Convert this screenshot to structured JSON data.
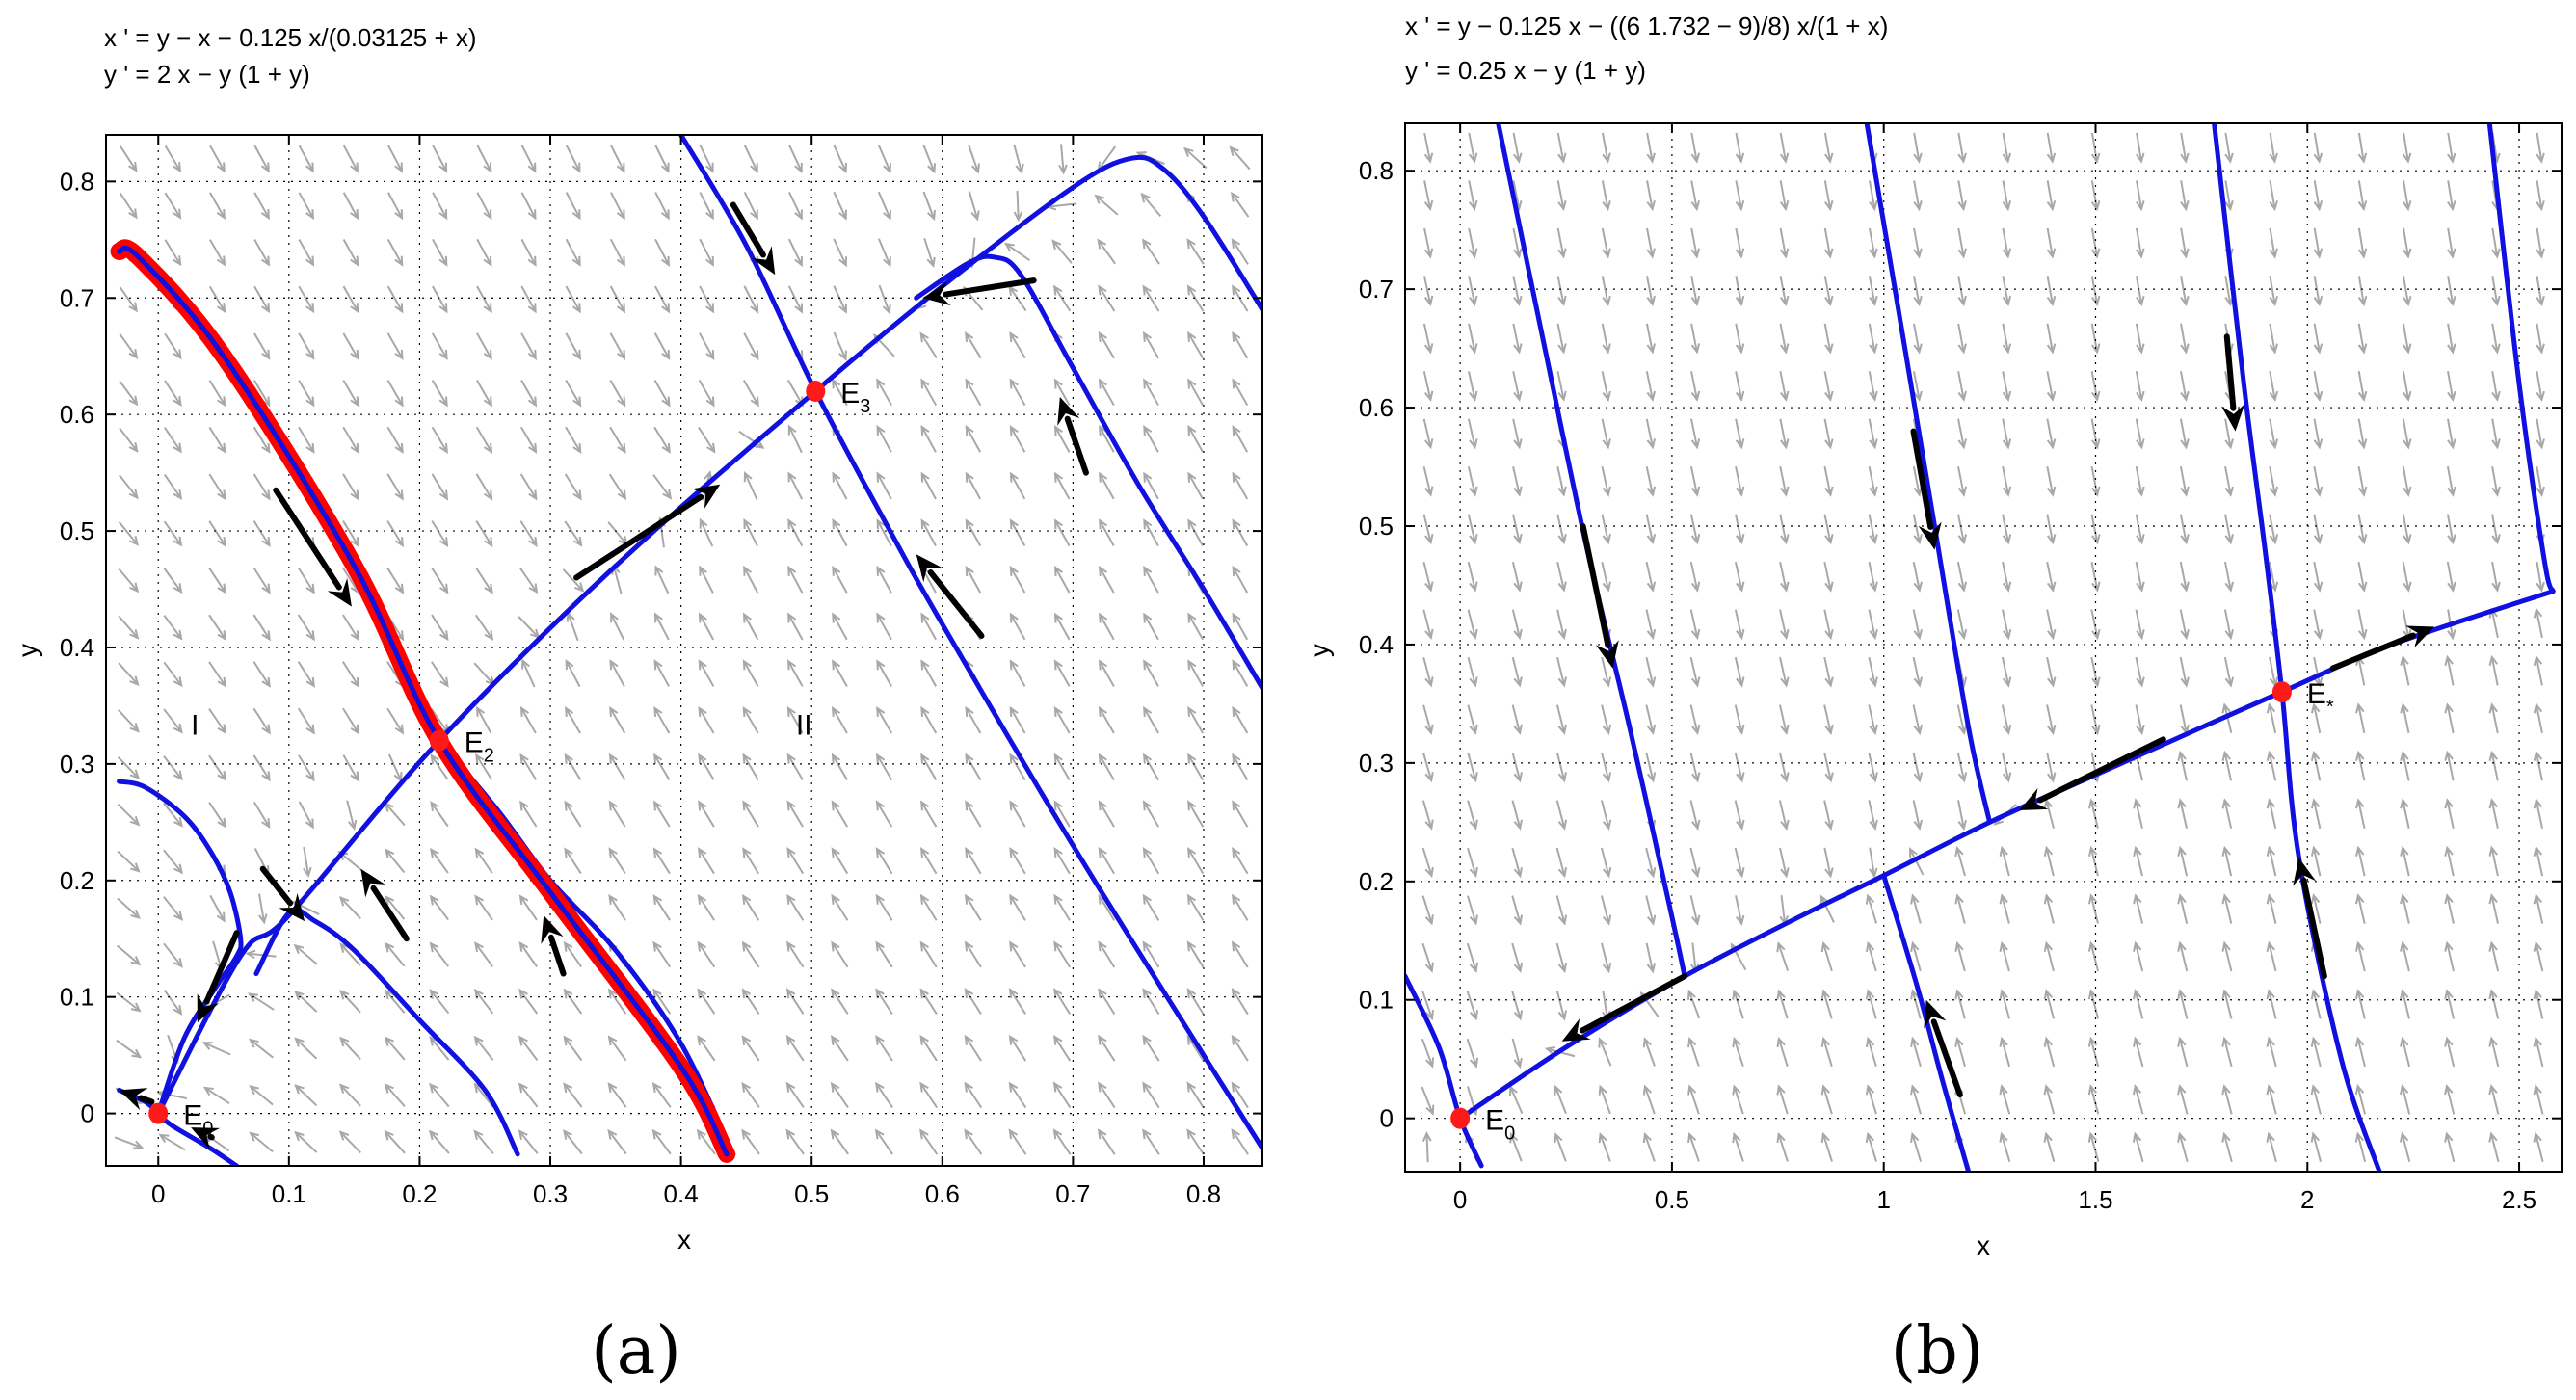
{
  "chart_data": [
    {
      "type": "line",
      "panel_label": "(a)",
      "equations": [
        "x ' = y − x − 0.125 x/(0.03125 + x)",
        "y ' = 2 x − y (1 + y)"
      ],
      "xlabel": "x",
      "ylabel": "y",
      "xlim": [
        -0.04,
        0.845
      ],
      "ylim": [
        -0.045,
        0.84
      ],
      "xticks": [
        0,
        0.1,
        0.2,
        0.3,
        0.4,
        0.5,
        0.6,
        0.7,
        0.8
      ],
      "xtick_labels": [
        "0",
        "0.1",
        "0.2",
        "0.3",
        "0.4",
        "0.5",
        "0.6",
        "0.7",
        "0.8"
      ],
      "yticks": [
        0,
        0.1,
        0.2,
        0.3,
        0.4,
        0.5,
        0.6,
        0.7,
        0.8
      ],
      "ytick_labels": [
        "0",
        "0.1",
        "0.2",
        "0.3",
        "0.4",
        "0.5",
        "0.6",
        "0.7",
        "0.8"
      ],
      "grid": true,
      "colors": {
        "trajectory": "#1010e0",
        "separatrix": "#ff0000",
        "field": "#a8a8a8",
        "arrow": "#000000",
        "equilibrium": "#ff1a1a"
      },
      "equilibria": [
        {
          "label": "E",
          "sub": "0",
          "x": 0,
          "y": 0
        },
        {
          "label": "E",
          "sub": "2",
          "x": 0.215,
          "y": 0.32
        },
        {
          "label": "E",
          "sub": "3",
          "x": 0.503,
          "y": 0.62
        }
      ],
      "region_labels": [
        {
          "text": "I",
          "x": 0.025,
          "y": 0.325
        },
        {
          "text": "II",
          "x": 0.488,
          "y": 0.325
        }
      ],
      "separatrix": [
        [
          -0.03,
          0.74
        ],
        [
          -0.015,
          0.735
        ],
        [
          0.05,
          0.65
        ],
        [
          0.15,
          0.47
        ],
        [
          0.215,
          0.32
        ],
        [
          0.3,
          0.19
        ],
        [
          0.4,
          0.04
        ],
        [
          0.435,
          -0.035
        ]
      ],
      "trajectories": [
        [
          [
            -0.03,
            0.285
          ],
          [
            -0.01,
            0.28
          ],
          [
            0.02,
            0.255
          ],
          [
            0.04,
            0.225
          ],
          [
            0.055,
            0.19
          ],
          [
            0.063,
            0.15
          ],
          [
            0.06,
            0.135
          ],
          [
            0.045,
            0.11
          ],
          [
            0.02,
            0.065
          ],
          [
            0.0,
            0.0
          ]
        ],
        [
          [
            0.0,
            0.0
          ],
          [
            0.063,
            0.135
          ],
          [
            0.1,
            0.17
          ],
          [
            0.215,
            0.32
          ],
          [
            0.35,
            0.47
          ],
          [
            0.503,
            0.62
          ],
          [
            0.6,
            0.71
          ],
          [
            0.7,
            0.795
          ],
          [
            0.745,
            0.82
          ],
          [
            0.77,
            0.81
          ],
          [
            0.8,
            0.77
          ],
          [
            0.845,
            0.69
          ]
        ],
        [
          [
            0.075,
            0.12
          ],
          [
            0.1,
            0.172
          ],
          [
            0.12,
            0.165
          ],
          [
            0.15,
            0.14
          ],
          [
            0.2,
            0.08
          ],
          [
            0.25,
            0.02
          ],
          [
            0.275,
            -0.035
          ]
        ],
        [
          [
            0.215,
            0.32
          ],
          [
            0.26,
            0.26
          ],
          [
            0.3,
            0.2
          ],
          [
            0.35,
            0.14
          ],
          [
            0.4,
            0.06
          ],
          [
            0.44,
            -0.035
          ]
        ],
        [
          [
            0.4,
            0.84
          ],
          [
            0.45,
            0.745
          ],
          [
            0.503,
            0.62
          ],
          [
            0.56,
            0.5
          ],
          [
            0.6,
            0.42
          ],
          [
            0.7,
            0.23
          ],
          [
            0.8,
            0.05
          ],
          [
            0.845,
            -0.03
          ]
        ],
        [
          [
            0.58,
            0.7
          ],
          [
            0.62,
            0.73
          ],
          [
            0.64,
            0.735
          ],
          [
            0.66,
            0.72
          ],
          [
            0.7,
            0.64
          ],
          [
            0.75,
            0.54
          ],
          [
            0.8,
            0.45
          ],
          [
            0.845,
            0.365
          ]
        ],
        [
          [
            -0.03,
            0.02
          ],
          [
            -0.01,
            0.01
          ],
          [
            0.0,
            0.0
          ],
          [
            0.01,
            -0.01
          ],
          [
            0.04,
            -0.03
          ],
          [
            0.06,
            -0.045
          ]
        ]
      ],
      "arrows": [
        {
          "from": [
            0.09,
            0.535
          ],
          "to": [
            0.148,
            0.435
          ]
        },
        {
          "from": [
            0.31,
            0.12
          ],
          "to": [
            0.295,
            0.17
          ]
        },
        {
          "from": [
            0.32,
            0.46
          ],
          "to": [
            0.43,
            0.54
          ]
        },
        {
          "from": [
            0.67,
            0.715
          ],
          "to": [
            0.585,
            0.7
          ]
        },
        {
          "from": [
            0.44,
            0.78
          ],
          "to": [
            0.472,
            0.72
          ]
        },
        {
          "from": [
            0.71,
            0.55
          ],
          "to": [
            0.69,
            0.615
          ]
        },
        {
          "from": [
            0.63,
            0.41
          ],
          "to": [
            0.58,
            0.48
          ]
        },
        {
          "from": [
            0.19,
            0.15
          ],
          "to": [
            0.155,
            0.21
          ]
        },
        {
          "from": [
            0.08,
            0.21
          ],
          "to": [
            0.112,
            0.165
          ]
        },
        {
          "from": [
            0.06,
            0.155
          ],
          "to": [
            0.03,
            0.078
          ]
        },
        {
          "from": [
            -0.005,
            0.01
          ],
          "to": [
            -0.03,
            0.02
          ]
        },
        {
          "from": [
            0.04,
            -0.02
          ],
          "to": [
            0.025,
            -0.012
          ]
        }
      ]
    },
    {
      "type": "line",
      "panel_label": "(b)",
      "equations": [
        "x ' = y − 0.125 x − ((6 1.732 − 9)/8) x/(1 + x)",
        "y ' = 0.25 x − y (1 + y)"
      ],
      "xlabel": "x",
      "ylabel": "y",
      "xlim": [
        -0.13,
        2.6
      ],
      "ylim": [
        -0.045,
        0.84
      ],
      "xticks": [
        0,
        0.5,
        1,
        1.5,
        2,
        2.5
      ],
      "xtick_labels": [
        "0",
        "0.5",
        "1",
        "1.5",
        "2",
        "2.5"
      ],
      "yticks": [
        0,
        0.1,
        0.2,
        0.3,
        0.4,
        0.5,
        0.6,
        0.7,
        0.8
      ],
      "ytick_labels": [
        "0",
        "0.1",
        "0.2",
        "0.3",
        "0.4",
        "0.5",
        "0.6",
        "0.7",
        "0.8"
      ],
      "grid": true,
      "colors": {
        "trajectory": "#1010e0",
        "field": "#a8a8a8",
        "arrow": "#000000",
        "equilibrium": "#ff1a1a"
      },
      "equilibria": [
        {
          "label": "E",
          "sub": "0",
          "x": 0,
          "y": 0
        },
        {
          "label": "E",
          "sub": "*",
          "x": 1.94,
          "y": 0.36
        }
      ],
      "trajectories": [
        [
          [
            0.0,
            0.0
          ],
          [
            0.25,
            0.06
          ],
          [
            0.53,
            0.12
          ],
          [
            0.8,
            0.17
          ],
          [
            1.0,
            0.205
          ],
          [
            1.25,
            0.25
          ],
          [
            1.5,
            0.29
          ],
          [
            1.75,
            0.33
          ],
          [
            1.94,
            0.36
          ],
          [
            2.2,
            0.4
          ],
          [
            2.58,
            0.445
          ]
        ],
        [
          [
            -0.13,
            0.12
          ],
          [
            -0.05,
            0.06
          ],
          [
            0.0,
            0.0
          ],
          [
            0.05,
            -0.04
          ]
        ],
        [
          [
            0.09,
            0.84
          ],
          [
            0.2,
            0.65
          ],
          [
            0.3,
            0.48
          ],
          [
            0.4,
            0.33
          ],
          [
            0.5,
            0.17
          ],
          [
            0.53,
            0.12
          ]
        ],
        [
          [
            0.96,
            0.84
          ],
          [
            1.05,
            0.65
          ],
          [
            1.12,
            0.5
          ],
          [
            1.2,
            0.33
          ],
          [
            1.25,
            0.25
          ]
        ],
        [
          [
            1.78,
            0.84
          ],
          [
            1.85,
            0.62
          ],
          [
            1.9,
            0.48
          ],
          [
            1.94,
            0.36
          ],
          [
            1.98,
            0.22
          ],
          [
            2.08,
            0.05
          ],
          [
            2.17,
            -0.045
          ]
        ],
        [
          [
            2.43,
            0.84
          ],
          [
            2.5,
            0.62
          ],
          [
            2.56,
            0.47
          ],
          [
            2.58,
            0.445
          ]
        ],
        [
          [
            1.0,
            0.205
          ],
          [
            1.08,
            0.11
          ],
          [
            1.14,
            0.03
          ],
          [
            1.2,
            -0.045
          ]
        ]
      ],
      "arrows": [
        {
          "from": [
            0.29,
            0.5
          ],
          "to": [
            0.36,
            0.38
          ]
        },
        {
          "from": [
            1.07,
            0.58
          ],
          "to": [
            1.12,
            0.48
          ]
        },
        {
          "from": [
            1.81,
            0.66
          ],
          "to": [
            1.83,
            0.58
          ]
        },
        {
          "from": [
            2.06,
            0.38
          ],
          "to": [
            2.3,
            0.415
          ]
        },
        {
          "from": [
            1.66,
            0.32
          ],
          "to": [
            1.32,
            0.26
          ]
        },
        {
          "from": [
            0.53,
            0.12
          ],
          "to": [
            0.24,
            0.065
          ]
        },
        {
          "from": [
            1.18,
            0.02
          ],
          "to": [
            1.1,
            0.1
          ]
        },
        {
          "from": [
            2.04,
            0.12
          ],
          "to": [
            1.98,
            0.22
          ]
        }
      ]
    }
  ]
}
